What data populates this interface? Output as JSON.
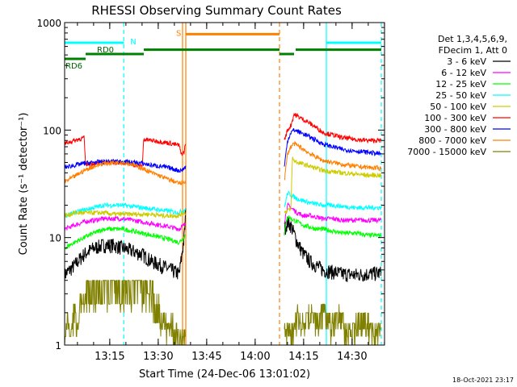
{
  "chart_data": {
    "type": "line",
    "title": "RHESSI Observing Summary Count Rates",
    "xlabel": "Start Time (24-Dec-06 13:01:02)",
    "ylabel": "Count Rate (s⁻¹ detector⁻¹)",
    "yscale": "log",
    "ylim": [
      1,
      1000
    ],
    "xlim_minutes": [
      0,
      99
    ],
    "x_ticks": [
      "13:15",
      "13:30",
      "13:45",
      "14:00",
      "14:15",
      "14:30"
    ],
    "y_ticks": [
      "1",
      "10",
      "100",
      "1000"
    ],
    "timestamp": "18-Oct-2021 23:17",
    "legend_header": [
      "Det 1,3,4,5,6,9,",
      "FDecim 1, Att 0"
    ],
    "legend_position": "right",
    "series": [
      {
        "name": "3 - 6 keV",
        "color": "#000000",
        "t": [
          0,
          3,
          6,
          9,
          12,
          15,
          18,
          21,
          24,
          27,
          30,
          33,
          35.5,
          36,
          37,
          37.5,
          68,
          69,
          70,
          71,
          72,
          74,
          76,
          78,
          80,
          83,
          86,
          90,
          94,
          98
        ],
        "v": [
          4.5,
          5.5,
          7,
          8,
          8.5,
          8.5,
          8,
          7.5,
          7,
          6,
          5.5,
          5,
          4.6,
          6,
          10,
          18,
          12,
          14,
          13,
          11,
          9,
          7,
          6,
          5.5,
          5,
          4.8,
          4.6,
          4.5,
          4.6,
          4.7
        ]
      },
      {
        "name": "6 - 12 keV",
        "color": "#ff00ff",
        "t": [
          0,
          3,
          6,
          9,
          12,
          15,
          18,
          21,
          24,
          27,
          30,
          33,
          35.5,
          36,
          37,
          37.5,
          68,
          69,
          70,
          71,
          72,
          74,
          76,
          78,
          80,
          83,
          86,
          90,
          94,
          98
        ],
        "v": [
          12,
          13,
          14,
          14.5,
          15,
          15,
          15,
          14.5,
          14,
          13.5,
          13,
          12.5,
          12,
          12.5,
          13,
          14,
          14,
          20,
          19,
          18,
          17,
          16,
          16,
          15.5,
          15,
          15,
          14.5,
          14.5,
          14.5,
          14.5
        ]
      },
      {
        "name": "12 - 25 keV",
        "color": "#00ff00",
        "t": [
          0,
          3,
          6,
          9,
          12,
          15,
          18,
          21,
          24,
          27,
          30,
          33,
          35.5,
          36,
          37,
          37.5,
          68,
          69,
          70,
          71,
          72,
          74,
          76,
          78,
          80,
          83,
          86,
          90,
          94,
          98
        ],
        "v": [
          8,
          9,
          10,
          11,
          12,
          12,
          12,
          11.5,
          11,
          10.5,
          10,
          9.5,
          9,
          9.5,
          10,
          11,
          11,
          16,
          15,
          14.5,
          14,
          13,
          12.5,
          12,
          12,
          11.5,
          11,
          11,
          10.5,
          10.5
        ]
      },
      {
        "name": "25 - 50 keV",
        "color": "#00ffff",
        "t": [
          0,
          3,
          6,
          9,
          12,
          15,
          18,
          21,
          24,
          27,
          30,
          33,
          35.5,
          36,
          37,
          37.5,
          68,
          69,
          70,
          71,
          72,
          74,
          76,
          78,
          80,
          83,
          86,
          90,
          94,
          98
        ],
        "v": [
          16,
          17,
          18,
          19,
          20,
          20,
          20,
          19.5,
          19,
          18.5,
          18,
          17.5,
          17,
          17.5,
          18,
          19,
          19,
          26,
          25,
          24,
          23,
          22,
          21,
          20.5,
          20,
          20,
          19.5,
          19,
          19,
          19
        ]
      },
      {
        "name": "50 - 100 keV",
        "color": "#cccc00",
        "t": [
          0,
          2,
          3,
          6,
          9,
          12,
          15,
          18,
          21,
          24,
          27,
          30,
          33,
          35.5,
          36,
          37,
          37.5,
          68,
          69,
          70,
          70.5,
          71,
          72,
          74,
          76,
          78,
          80,
          83,
          86,
          90,
          94,
          98
        ],
        "v": [
          16,
          16.5,
          17,
          17,
          17,
          17,
          16.5,
          16.5,
          16.5,
          16.5,
          16.5,
          16,
          16,
          16,
          16.5,
          17,
          17,
          17,
          18,
          18,
          55,
          52,
          50,
          48,
          46,
          44,
          42,
          41,
          40,
          39,
          38,
          38
        ]
      },
      {
        "name": "100 - 300 keV",
        "color": "#ff0000",
        "t": [
          0,
          3,
          6,
          6.5,
          9,
          12,
          15,
          18,
          21,
          24,
          24.5,
          27,
          30,
          33,
          35.5,
          36,
          37,
          37.5,
          68,
          69,
          70,
          71,
          72,
          74,
          76,
          78,
          80,
          83,
          86,
          90,
          94,
          98
        ],
        "v": [
          75,
          80,
          85,
          48,
          49,
          50,
          50,
          50,
          48,
          46,
          82,
          80,
          78,
          75,
          72,
          60,
          62,
          80,
          80,
          100,
          110,
          140,
          135,
          125,
          115,
          105,
          95,
          90,
          85,
          82,
          80,
          80
        ]
      },
      {
        "name": "300 - 800 keV",
        "color": "#0000ff",
        "t": [
          0,
          3,
          6,
          9,
          12,
          15,
          18,
          21,
          24,
          27,
          30,
          33,
          35.5,
          36,
          37,
          37.5,
          68,
          69,
          70,
          71,
          72,
          74,
          76,
          78,
          80,
          83,
          86,
          90,
          94,
          98
        ],
        "v": [
          45,
          47,
          49,
          50,
          51,
          51,
          51,
          50,
          49,
          47,
          46,
          44,
          42,
          42,
          44,
          46,
          46,
          80,
          95,
          100,
          98,
          92,
          86,
          80,
          74,
          70,
          66,
          64,
          62,
          60
        ]
      },
      {
        "name": "800 - 7000 keV",
        "color": "#ff8000",
        "t": [
          0,
          3,
          6,
          9,
          12,
          15,
          18,
          21,
          24,
          27,
          30,
          33,
          35.5,
          36,
          37,
          37.5,
          68,
          69,
          70,
          71,
          72,
          74,
          76,
          78,
          80,
          83,
          86,
          90,
          94,
          98
        ],
        "v": [
          33,
          37,
          42,
          46,
          49,
          50,
          50,
          48,
          44,
          40,
          37,
          34,
          32,
          32,
          33,
          34,
          34,
          60,
          70,
          75,
          72,
          66,
          60,
          56,
          52,
          50,
          48,
          46,
          45,
          44
        ]
      },
      {
        "name": "7000 - 15000 keV",
        "color": "#808000",
        "t": [
          0,
          1,
          2,
          3,
          4,
          5,
          6,
          7,
          10,
          15,
          20,
          25,
          26,
          27,
          28,
          29,
          30,
          31,
          32,
          33,
          34,
          35,
          36,
          37.5,
          68,
          69,
          70,
          72,
          74,
          76,
          78,
          80,
          82,
          85,
          88,
          92,
          95,
          98
        ],
        "v": [
          1.2,
          2,
          1.3,
          2.4,
          1.6,
          3,
          2.4,
          4,
          4,
          4,
          4,
          4,
          3,
          4,
          2.4,
          3,
          1.6,
          2,
          1.3,
          2,
          1.2,
          1.5,
          1.2,
          1.4,
          1.3,
          1.6,
          1.3,
          2,
          1.5,
          2.4,
          1.6,
          2.4,
          1.6,
          2,
          1.4,
          2,
          1.5,
          1.6
        ]
      }
    ],
    "annotations": [
      {
        "label": "N",
        "color": "#00ffff",
        "start": 0,
        "end": 18.3,
        "level": 650
      },
      {
        "label": "RD0",
        "color": "#008000",
        "start": 9,
        "end": 24.5,
        "level": 510
      },
      {
        "label": "RD6",
        "color": "#008000",
        "start": 0,
        "end": 6.5,
        "level": 460
      },
      {
        "label": "S",
        "color": "#ff8000",
        "start": 37.5,
        "end": 66.5,
        "level": 780
      }
    ],
    "segments": [
      {
        "color": "#008000",
        "start": 6.5,
        "end": 24.5,
        "level": 510
      },
      {
        "color": "#008000",
        "start": 24.5,
        "end": 66.5,
        "level": 560
      },
      {
        "color": "#008000",
        "start": 66.5,
        "end": 71,
        "level": 510
      },
      {
        "color": "#008000",
        "start": 71.5,
        "end": 98,
        "level": 560
      },
      {
        "color": "#00ffff",
        "start": 81,
        "end": 98,
        "level": 650
      }
    ],
    "vlines": [
      {
        "t": 18.3,
        "color": "#00ffff",
        "style": "dashed"
      },
      {
        "t": 36.5,
        "color": "#ff8000",
        "style": "solid"
      },
      {
        "t": 37.5,
        "color": "#ff8000",
        "style": "solid"
      },
      {
        "t": 66.5,
        "color": "#ff8000",
        "style": "dashed"
      },
      {
        "t": 81,
        "color": "#00ffff",
        "style": "solid"
      },
      {
        "t": 98,
        "color": "#00ffff",
        "style": "dashed"
      }
    ]
  }
}
